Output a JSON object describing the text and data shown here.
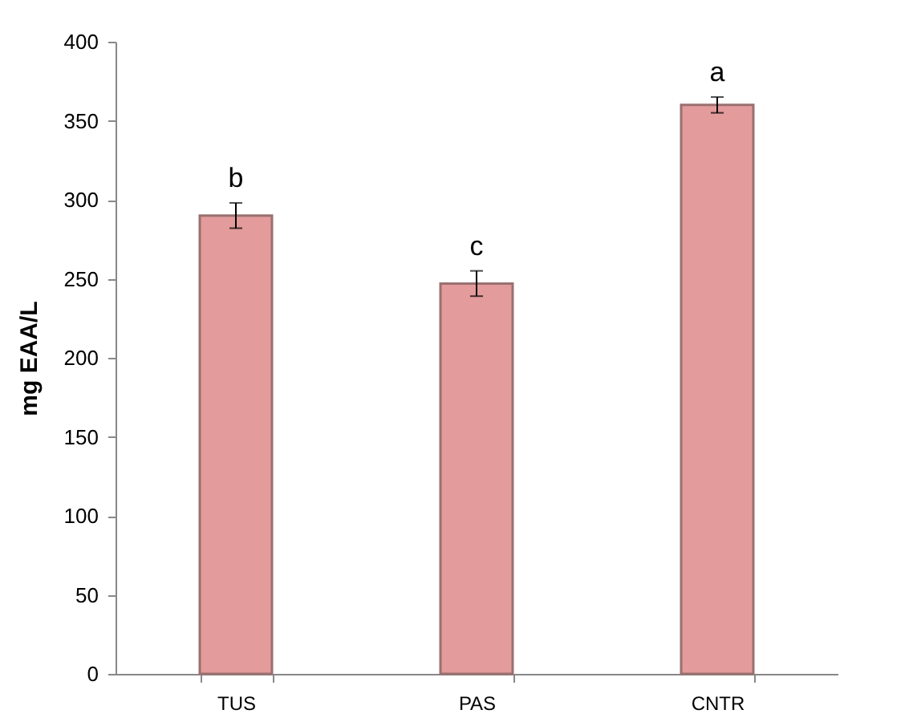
{
  "chart_data": {
    "type": "bar",
    "ylabel": "mg EAA/L",
    "categories": [
      "TUS",
      "PAS",
      "CNTR"
    ],
    "values": [
      290,
      247,
      360
    ],
    "errors": [
      8,
      8,
      5
    ],
    "color": "#e39b9b",
    "ylim": [
      0,
      400
    ],
    "yticks": [
      0,
      50,
      100,
      150,
      200,
      250,
      300,
      350,
      400
    ],
    "grid": false,
    "annotations": [
      "b",
      "c",
      "a"
    ]
  }
}
